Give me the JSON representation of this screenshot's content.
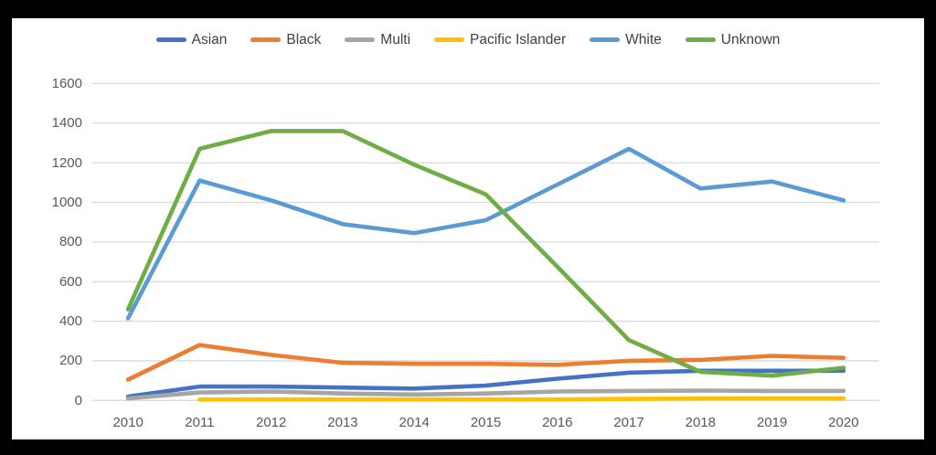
{
  "chart_data": {
    "type": "line",
    "title": "",
    "categories": [
      "2010",
      "2011",
      "2012",
      "2013",
      "2014",
      "2015",
      "2016",
      "2017",
      "2018",
      "2019",
      "2020"
    ],
    "series": [
      {
        "name": "Asian",
        "color": "#4472C4",
        "values": [
          20,
          70,
          70,
          65,
          60,
          75,
          110,
          140,
          150,
          150,
          150
        ]
      },
      {
        "name": "Black",
        "color": "#ED7D31",
        "values": [
          105,
          280,
          230,
          190,
          185,
          185,
          180,
          200,
          205,
          225,
          215
        ]
      },
      {
        "name": "Multi",
        "color": "#A5A5A5",
        "values": [
          10,
          40,
          45,
          35,
          30,
          35,
          45,
          48,
          50,
          48,
          48
        ]
      },
      {
        "name": "Pacific Islander",
        "color": "#FFC000",
        "values": [
          null,
          5,
          5,
          5,
          5,
          5,
          5,
          8,
          10,
          10,
          10
        ]
      },
      {
        "name": "White",
        "color": "#5B9BD5",
        "values": [
          415,
          1110,
          1010,
          890,
          845,
          910,
          1090,
          1270,
          1070,
          1105,
          1010
        ]
      },
      {
        "name": "Unknown",
        "color": "#70AD47",
        "values": [
          460,
          1270,
          1360,
          1360,
          1190,
          1040,
          675,
          305,
          145,
          125,
          165
        ]
      }
    ],
    "xlabel": "",
    "ylabel": "",
    "ylim": [
      0,
      1600
    ],
    "yticks": [
      "0",
      "200",
      "400",
      "600",
      "800",
      "1000",
      "1200",
      "1400",
      "1600"
    ],
    "ytick_values": [
      0,
      200,
      400,
      600,
      800,
      1000,
      1200,
      1400,
      1600
    ],
    "grid": true,
    "legend_position": "top",
    "colors": {
      "panel_background": "#ffffff",
      "frame_background": "#000000",
      "gridline": "#d9d9d9",
      "axis_text": "#595959",
      "legend_text": "#404040"
    }
  }
}
